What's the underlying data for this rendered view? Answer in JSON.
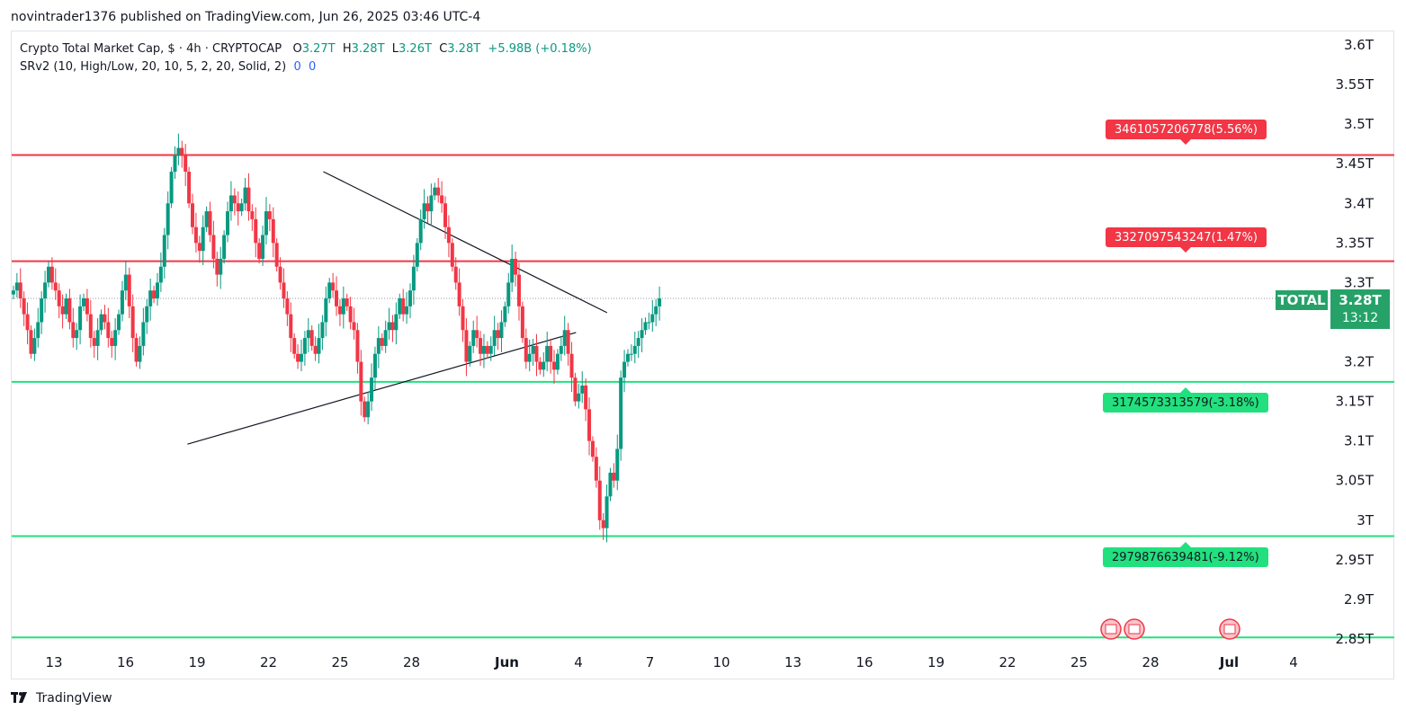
{
  "header": {
    "publisher_line": "novintrader1376 published on TradingView.com, Jun 26, 2025 03:46 UTC-4"
  },
  "legend": {
    "symbol_desc": "Crypto Total Market Cap, $ · 4h · CRYPTOCAP",
    "o_label": "O",
    "o_value": "3.27T",
    "h_label": "H",
    "h_value": "3.28T",
    "l_label": "L",
    "l_value": "3.26T",
    "c_label": "C",
    "c_value": "3.28T",
    "change": "+5.98B (+0.18%)",
    "indicator": "SRv2 (10, High/Low, 20, 10, 5, 2, 20, Solid, 2)",
    "ind_val1": "0",
    "ind_val2": "0"
  },
  "price_badge": {
    "symbol": "TOTAL",
    "price": "3.28T",
    "countdown": "13:12"
  },
  "footer": {
    "brand": "TradingView"
  },
  "colors": {
    "up": "#089981",
    "down": "#f23645",
    "resistance": "#f23645",
    "support": "#22e07e",
    "badge": "#26a269"
  },
  "chart_data": {
    "type": "candlestick",
    "y_axis_ticks": [
      "3.6T",
      "3.55T",
      "3.5T",
      "3.45T",
      "3.4T",
      "3.35T",
      "3.3T",
      "3.2T",
      "3.15T",
      "3.1T",
      "3.05T",
      "3T",
      "2.95T",
      "2.9T",
      "2.85T"
    ],
    "y_tick_values": [
      3.6,
      3.55,
      3.5,
      3.45,
      3.4,
      3.35,
      3.3,
      3.2,
      3.15,
      3.1,
      3.05,
      3.0,
      2.95,
      2.9,
      2.85
    ],
    "ylim": [
      2.85,
      3.6
    ],
    "x_axis_ticks": [
      "13",
      "16",
      "19",
      "22",
      "25",
      "28",
      "Jun",
      "4",
      "7",
      "10",
      "13",
      "16",
      "19",
      "22",
      "25",
      "28",
      "Jul",
      "4"
    ],
    "x_axis_bold": [
      "Jun",
      "Jul"
    ],
    "levels": [
      {
        "kind": "resistance",
        "value": 3.461,
        "label": "3461057206778(5.56%)"
      },
      {
        "kind": "resistance",
        "value": 3.327,
        "label": "3327097543247(1.47%)"
      },
      {
        "kind": "support",
        "value": 3.1746,
        "label": "3174573313579(-3.18%)"
      },
      {
        "kind": "support",
        "value": 2.9799,
        "label": "2979876639481(-9.12%)"
      },
      {
        "kind": "support",
        "value": 2.852,
        "label": ""
      }
    ],
    "trendlines": [
      {
        "name": "descending",
        "from": {
          "day": 11.3,
          "y": 3.44
        },
        "to": {
          "day": 23.2,
          "y": 3.262
        }
      },
      {
        "name": "ascending",
        "from": {
          "day": 5.6,
          "y": 3.096
        },
        "to": {
          "day": 21.9,
          "y": 3.237
        }
      }
    ],
    "last_price": 3.28,
    "closes": [
      3.29,
      3.3,
      3.28,
      3.26,
      3.24,
      3.21,
      3.23,
      3.25,
      3.28,
      3.3,
      3.32,
      3.3,
      3.29,
      3.27,
      3.26,
      3.28,
      3.25,
      3.23,
      3.24,
      3.27,
      3.28,
      3.26,
      3.23,
      3.22,
      3.24,
      3.26,
      3.25,
      3.23,
      3.22,
      3.24,
      3.26,
      3.29,
      3.31,
      3.27,
      3.23,
      3.2,
      3.22,
      3.25,
      3.27,
      3.29,
      3.28,
      3.3,
      3.32,
      3.36,
      3.4,
      3.44,
      3.46,
      3.47,
      3.46,
      3.44,
      3.4,
      3.37,
      3.35,
      3.34,
      3.37,
      3.39,
      3.36,
      3.33,
      3.31,
      3.33,
      3.36,
      3.39,
      3.41,
      3.4,
      3.39,
      3.4,
      3.42,
      3.39,
      3.38,
      3.35,
      3.33,
      3.36,
      3.39,
      3.38,
      3.35,
      3.32,
      3.3,
      3.28,
      3.26,
      3.23,
      3.21,
      3.2,
      3.21,
      3.23,
      3.24,
      3.22,
      3.21,
      3.23,
      3.25,
      3.28,
      3.3,
      3.29,
      3.27,
      3.26,
      3.28,
      3.27,
      3.25,
      3.24,
      3.2,
      3.15,
      3.13,
      3.15,
      3.18,
      3.21,
      3.23,
      3.22,
      3.24,
      3.25,
      3.24,
      3.26,
      3.28,
      3.26,
      3.27,
      3.29,
      3.32,
      3.35,
      3.38,
      3.4,
      3.39,
      3.41,
      3.42,
      3.41,
      3.4,
      3.37,
      3.35,
      3.32,
      3.3,
      3.27,
      3.24,
      3.2,
      3.22,
      3.24,
      3.23,
      3.21,
      3.22,
      3.21,
      3.22,
      3.24,
      3.23,
      3.25,
      3.27,
      3.3,
      3.33,
      3.31,
      3.27,
      3.23,
      3.2,
      3.21,
      3.22,
      3.2,
      3.19,
      3.2,
      3.22,
      3.2,
      3.19,
      3.21,
      3.22,
      3.24,
      3.21,
      3.18,
      3.15,
      3.16,
      3.17,
      3.14,
      3.1,
      3.08,
      3.05,
      3.0,
      2.99,
      3.03,
      3.06,
      3.05,
      3.09,
      3.18,
      3.2,
      3.21,
      3.21,
      3.22,
      3.23,
      3.24,
      3.25,
      3.25,
      3.26,
      3.27,
      3.28
    ]
  }
}
